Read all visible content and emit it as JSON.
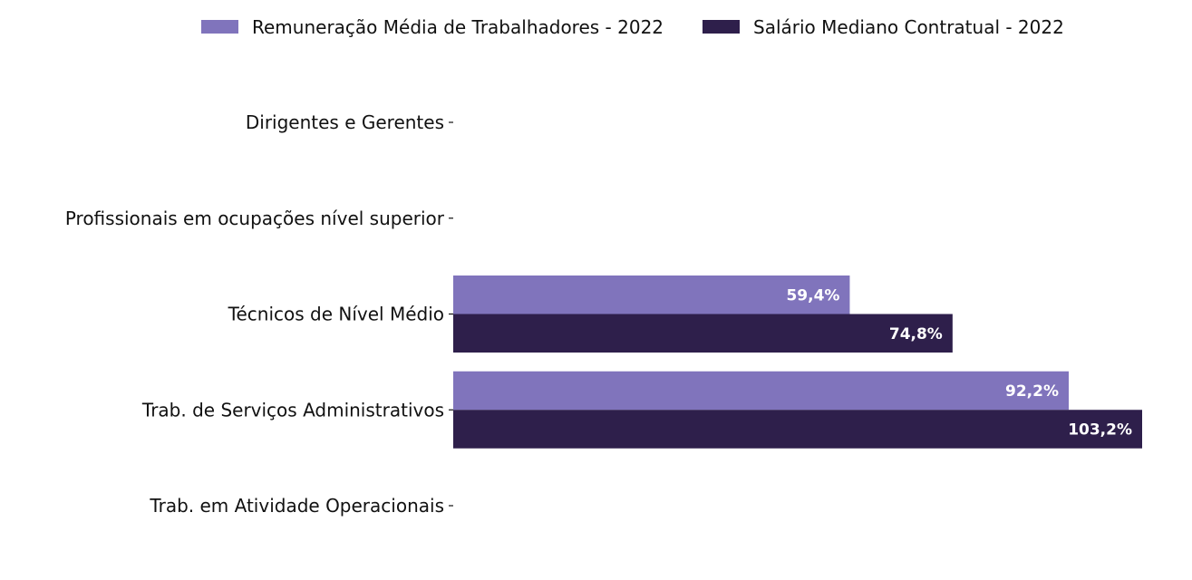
{
  "chart_data": {
    "type": "bar",
    "orientation": "horizontal",
    "categories": [
      "Dirigentes e Gerentes",
      "Profissionais em ocupações nível superior",
      "Técnicos de Nível Médio",
      "Trab. de Serviços Administrativos",
      "Trab. em Atividade Operacionais"
    ],
    "series": [
      {
        "name": "Remuneração Média de Trabalhadores - 2022",
        "color": "#8074bc",
        "values": [
          null,
          null,
          59.4,
          92.2,
          null
        ],
        "labels": [
          "",
          "",
          "59,4%",
          "92,2%",
          ""
        ]
      },
      {
        "name": "Salário Mediano Contratual - 2022",
        "color": "#2e1f4b",
        "values": [
          null,
          null,
          74.8,
          103.2,
          null
        ],
        "labels": [
          "",
          "",
          "74,8%",
          "103,2%",
          ""
        ]
      }
    ],
    "xlim": [
      0,
      103.2
    ],
    "legend_position": "top-center",
    "grid": false
  }
}
